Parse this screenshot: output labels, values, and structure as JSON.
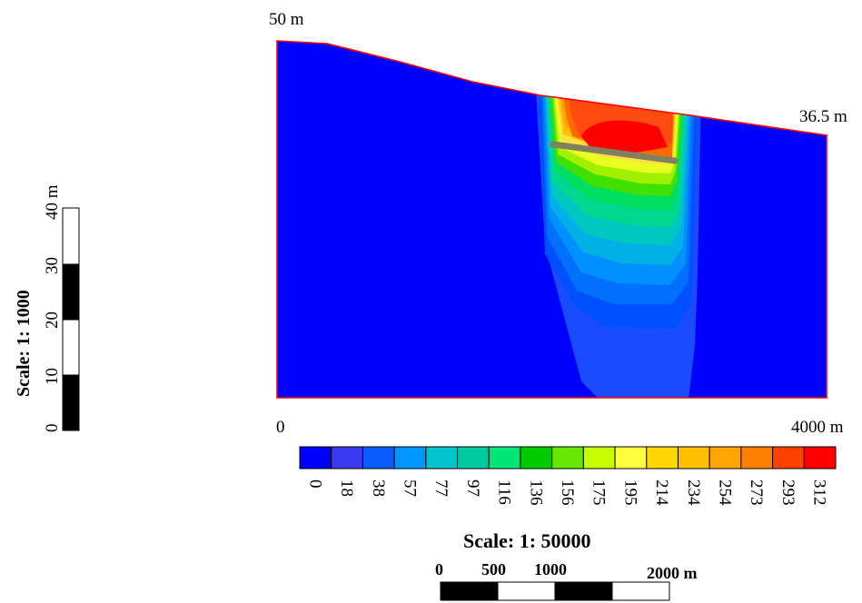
{
  "section": {
    "left_height_label": "50 m",
    "right_height_label": "36.5 m",
    "origin_label": "0",
    "length_label": "4000 m"
  },
  "vertical_scale": {
    "title": "Scale: 1: 1000",
    "ticks": [
      "0",
      "10",
      "20",
      "30",
      "40 m"
    ]
  },
  "horizontal_scale": {
    "title": "Scale: 1: 50000",
    "ticks": [
      "0",
      "500",
      "1000",
      "2000 m"
    ]
  },
  "legend": {
    "values": [
      "0",
      "18",
      "38",
      "57",
      "77",
      "97",
      "116",
      "136",
      "156",
      "175",
      "195",
      "214",
      "234",
      "254",
      "273",
      "293",
      "312"
    ],
    "colors": [
      "#0000ff",
      "#3a3af2",
      "#0a5cff",
      "#0096ff",
      "#00c4cc",
      "#00c8a0",
      "#00e676",
      "#00cc00",
      "#66e600",
      "#c8ff00",
      "#ffff40",
      "#ffd700",
      "#ffbf00",
      "#ffa500",
      "#ff8000",
      "#ff4000",
      "#ff0000"
    ]
  },
  "colors": {
    "background_field": "#0000ff",
    "section_outline": "#ff0000",
    "drain_bar": "#808060"
  }
}
